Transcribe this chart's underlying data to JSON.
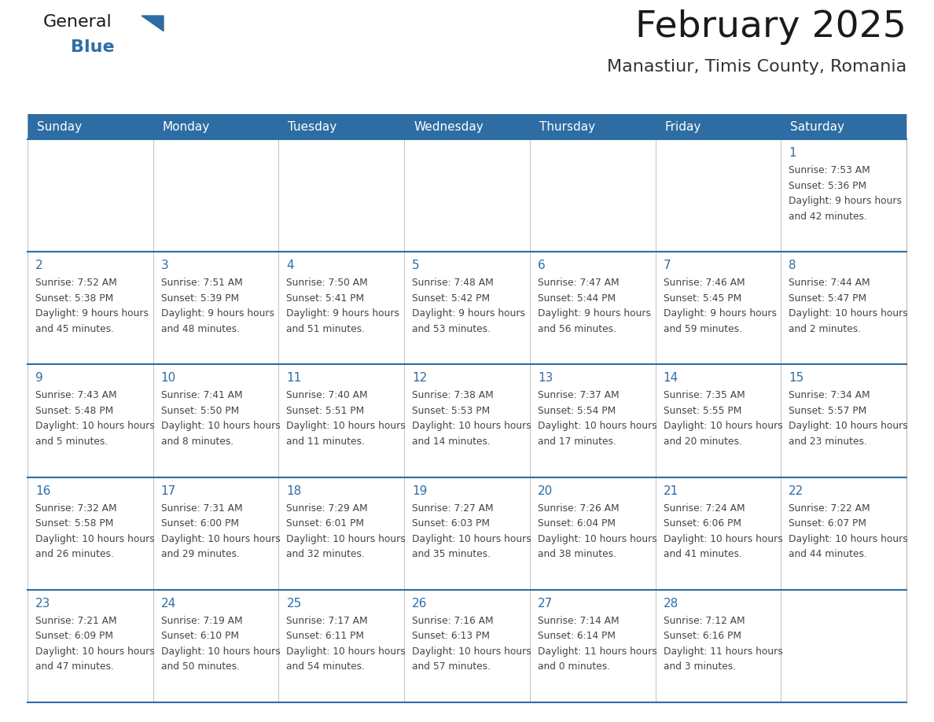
{
  "title": "February 2025",
  "subtitle": "Manastiur, Timis County, Romania",
  "days_of_week": [
    "Sunday",
    "Monday",
    "Tuesday",
    "Wednesday",
    "Thursday",
    "Friday",
    "Saturday"
  ],
  "header_bg": "#2E6DA4",
  "header_text": "#FFFFFF",
  "border_color": "#2E6DA4",
  "cell_border_color": "#AAAAAA",
  "day_num_color": "#2E6DA4",
  "text_color": "#444444",
  "cell_bg": "#FFFFFF",
  "alt_cell_bg": "#F5F5F5",
  "calendar_data": [
    [
      null,
      null,
      null,
      null,
      null,
      null,
      {
        "day": 1,
        "sunrise": "7:53 AM",
        "sunset": "5:36 PM",
        "daylight": "9 hours and 42 minutes."
      }
    ],
    [
      {
        "day": 2,
        "sunrise": "7:52 AM",
        "sunset": "5:38 PM",
        "daylight": "9 hours and 45 minutes."
      },
      {
        "day": 3,
        "sunrise": "7:51 AM",
        "sunset": "5:39 PM",
        "daylight": "9 hours and 48 minutes."
      },
      {
        "day": 4,
        "sunrise": "7:50 AM",
        "sunset": "5:41 PM",
        "daylight": "9 hours and 51 minutes."
      },
      {
        "day": 5,
        "sunrise": "7:48 AM",
        "sunset": "5:42 PM",
        "daylight": "9 hours and 53 minutes."
      },
      {
        "day": 6,
        "sunrise": "7:47 AM",
        "sunset": "5:44 PM",
        "daylight": "9 hours and 56 minutes."
      },
      {
        "day": 7,
        "sunrise": "7:46 AM",
        "sunset": "5:45 PM",
        "daylight": "9 hours and 59 minutes."
      },
      {
        "day": 8,
        "sunrise": "7:44 AM",
        "sunset": "5:47 PM",
        "daylight": "10 hours and 2 minutes."
      }
    ],
    [
      {
        "day": 9,
        "sunrise": "7:43 AM",
        "sunset": "5:48 PM",
        "daylight": "10 hours and 5 minutes."
      },
      {
        "day": 10,
        "sunrise": "7:41 AM",
        "sunset": "5:50 PM",
        "daylight": "10 hours and 8 minutes."
      },
      {
        "day": 11,
        "sunrise": "7:40 AM",
        "sunset": "5:51 PM",
        "daylight": "10 hours and 11 minutes."
      },
      {
        "day": 12,
        "sunrise": "7:38 AM",
        "sunset": "5:53 PM",
        "daylight": "10 hours and 14 minutes."
      },
      {
        "day": 13,
        "sunrise": "7:37 AM",
        "sunset": "5:54 PM",
        "daylight": "10 hours and 17 minutes."
      },
      {
        "day": 14,
        "sunrise": "7:35 AM",
        "sunset": "5:55 PM",
        "daylight": "10 hours and 20 minutes."
      },
      {
        "day": 15,
        "sunrise": "7:34 AM",
        "sunset": "5:57 PM",
        "daylight": "10 hours and 23 minutes."
      }
    ],
    [
      {
        "day": 16,
        "sunrise": "7:32 AM",
        "sunset": "5:58 PM",
        "daylight": "10 hours and 26 minutes."
      },
      {
        "day": 17,
        "sunrise": "7:31 AM",
        "sunset": "6:00 PM",
        "daylight": "10 hours and 29 minutes."
      },
      {
        "day": 18,
        "sunrise": "7:29 AM",
        "sunset": "6:01 PM",
        "daylight": "10 hours and 32 minutes."
      },
      {
        "day": 19,
        "sunrise": "7:27 AM",
        "sunset": "6:03 PM",
        "daylight": "10 hours and 35 minutes."
      },
      {
        "day": 20,
        "sunrise": "7:26 AM",
        "sunset": "6:04 PM",
        "daylight": "10 hours and 38 minutes."
      },
      {
        "day": 21,
        "sunrise": "7:24 AM",
        "sunset": "6:06 PM",
        "daylight": "10 hours and 41 minutes."
      },
      {
        "day": 22,
        "sunrise": "7:22 AM",
        "sunset": "6:07 PM",
        "daylight": "10 hours and 44 minutes."
      }
    ],
    [
      {
        "day": 23,
        "sunrise": "7:21 AM",
        "sunset": "6:09 PM",
        "daylight": "10 hours and 47 minutes."
      },
      {
        "day": 24,
        "sunrise": "7:19 AM",
        "sunset": "6:10 PM",
        "daylight": "10 hours and 50 minutes."
      },
      {
        "day": 25,
        "sunrise": "7:17 AM",
        "sunset": "6:11 PM",
        "daylight": "10 hours and 54 minutes."
      },
      {
        "day": 26,
        "sunrise": "7:16 AM",
        "sunset": "6:13 PM",
        "daylight": "10 hours and 57 minutes."
      },
      {
        "day": 27,
        "sunrise": "7:14 AM",
        "sunset": "6:14 PM",
        "daylight": "11 hours and 0 minutes."
      },
      {
        "day": 28,
        "sunrise": "7:12 AM",
        "sunset": "6:16 PM",
        "daylight": "11 hours and 3 minutes."
      },
      null
    ]
  ],
  "logo_color_general": "#1a1a1a",
  "logo_color_blue": "#2E6DA4",
  "logo_triangle_color": "#2E6DA4"
}
